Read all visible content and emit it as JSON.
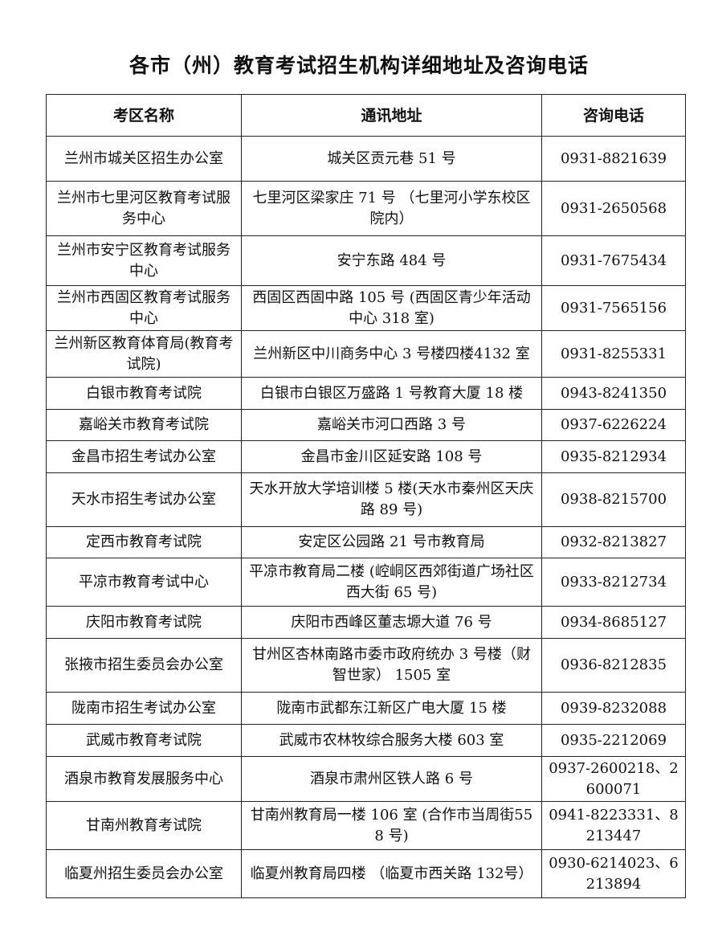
{
  "title": "各市（州）教育考试招生机构详细地址及咨询电话",
  "table": {
    "headers": [
      "考区名称",
      "通讯地址",
      "咨询电话"
    ],
    "rows": [
      {
        "name": "兰州市城关区招生办公室",
        "address": "城关区贡元巷 51 号",
        "phone": "0931-8821639"
      },
      {
        "name": "兰州市七里河区教育考试服务中心",
        "address": "七里河区梁家庄 71 号 （七里河小学东校区院内）",
        "phone": "0931-2650568"
      },
      {
        "name": "兰州市安宁区教育考试服务中心",
        "address": "安宁东路 484 号",
        "phone": "0931-7675434"
      },
      {
        "name": "兰州市西固区教育考试服务中心",
        "address": "西固区西固中路 105 号 (西固区青少年活动中心 318 室)",
        "phone": "0931-7565156"
      },
      {
        "name": "兰州新区教育体育局(教育考试院)",
        "address": "兰州新区中川商务中心 3 号楼四楼4132 室",
        "phone": "0931-8255331"
      },
      {
        "name": "白银市教育考试院",
        "address": "白银市白银区万盛路 1 号教育大厦 18 楼",
        "phone": "0943-8241350"
      },
      {
        "name": "嘉峪关市教育考试院",
        "address": "嘉峪关市河口西路 3 号",
        "phone": "0937-6226224"
      },
      {
        "name": "金昌市招生考试办公室",
        "address": "金昌市金川区延安路 108 号",
        "phone": "0935-8212934"
      },
      {
        "name": "天水市招生考试办公室",
        "address": "天水开放大学培训楼 5 楼(天水市秦州区天庆路 89 号)",
        "phone": "0938-8215700"
      },
      {
        "name": "定西市教育考试院",
        "address": "安定区公园路 21 号市教育局",
        "phone": "0932-8213827"
      },
      {
        "name": "平凉市教育考试中心",
        "address": "平凉市教育局二楼 (崆峒区西郊街道广场社区西大街 65 号)",
        "phone": "0933-8212734"
      },
      {
        "name": "庆阳市教育考试院",
        "address": "庆阳市西峰区董志塬大道 76 号",
        "phone": "0934-8685127"
      },
      {
        "name": "张掖市招生委员会办公室",
        "address": "甘州区杏林南路市委市政府统办 3 号楼（财智世家） 1505 室",
        "phone": "0936-8212835"
      },
      {
        "name": "陇南市招生考试办公室",
        "address": "陇南市武都东江新区广电大厦 15 楼",
        "phone": "0939-8232088"
      },
      {
        "name": "武威市教育考试院",
        "address": "武威市农林牧综合服务大楼 603 室",
        "phone": "0935-2212069"
      },
      {
        "name": "酒泉市教育发展服务中心",
        "address": "酒泉市肃州区铁人路 6 号",
        "phone": "0937-2600218、2600071"
      },
      {
        "name": "甘南州教育考试院",
        "address": "甘南州教育局一楼 106 室 (合作市当周街558 号)",
        "phone": "0941-8223331、8213447"
      },
      {
        "name": "临夏州招生委员会办公室",
        "address": "临夏州教育局四楼 （临夏市西关路 132号）",
        "phone": "0930-6214023、6213894"
      }
    ]
  }
}
